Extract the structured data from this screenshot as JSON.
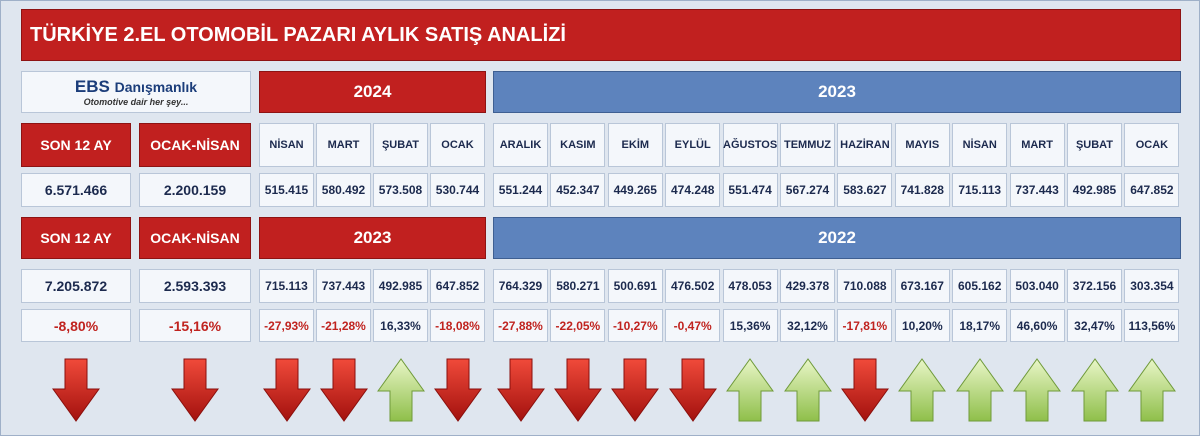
{
  "title": "TÜRKİYE 2.EL OTOMOBİL PAZARI AYLIK SATIŞ ANALİZİ",
  "logo": {
    "name": "EBS",
    "brand": "Danışmanlık",
    "tagline": "Otomotive dair her şey..."
  },
  "section1": {
    "summary_headers": [
      "SON 12 AY",
      "OCAK-NİSAN"
    ],
    "summary_values": [
      "6.571.466",
      "2.200.159"
    ],
    "years": [
      "2024",
      "2023"
    ],
    "months": [
      "NİSAN",
      "MART",
      "ŞUBAT",
      "OCAK",
      "ARALIK",
      "KASIM",
      "EKİM",
      "EYLÜL",
      "AĞUSTOS",
      "TEMMUZ",
      "HAZİRAN",
      "MAYIS",
      "NİSAN",
      "MART",
      "ŞUBAT",
      "OCAK"
    ],
    "values": [
      "515.415",
      "580.492",
      "573.508",
      "530.744",
      "551.244",
      "452.347",
      "449.265",
      "474.248",
      "551.474",
      "567.274",
      "583.627",
      "741.828",
      "715.113",
      "737.443",
      "492.985",
      "647.852"
    ]
  },
  "section2": {
    "summary_headers": [
      "SON 12 AY",
      "OCAK-NİSAN"
    ],
    "summary_values": [
      "7.205.872",
      "2.593.393"
    ],
    "summary_changes": [
      "-8,80%",
      "-15,16%"
    ],
    "years": [
      "2023",
      "2022"
    ],
    "values": [
      "715.113",
      "737.443",
      "492.985",
      "647.852",
      "764.329",
      "580.271",
      "500.691",
      "476.502",
      "478.053",
      "429.378",
      "710.088",
      "673.167",
      "605.162",
      "503.040",
      "372.156",
      "303.354"
    ],
    "changes": [
      "-27,93%",
      "-21,28%",
      "16,33%",
      "-18,08%",
      "-27,88%",
      "-22,05%",
      "-10,27%",
      "-0,47%",
      "15,36%",
      "32,12%",
      "-17,81%",
      "10,20%",
      "18,17%",
      "46,60%",
      "32,47%",
      "113,56%"
    ]
  }
}
